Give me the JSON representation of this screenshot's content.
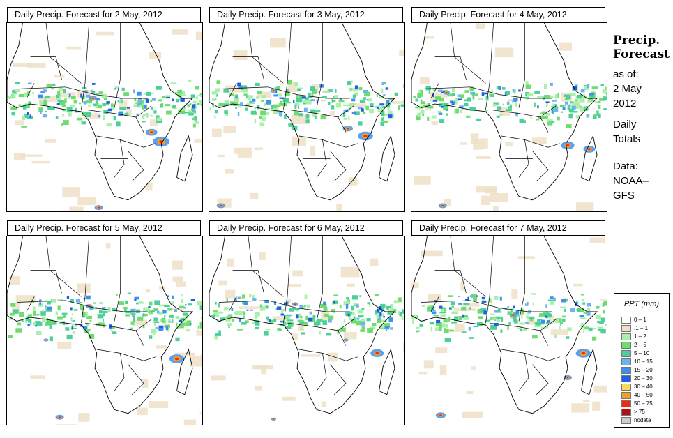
{
  "panels": [
    {
      "title": "Daily Precip. Forecast for  2 May, 2012",
      "seed": 11,
      "hot": [
        [
          0.79,
          0.63,
          1.0
        ],
        [
          0.74,
          0.58,
          0.7
        ],
        [
          0.44,
          0.4,
          0.5
        ],
        [
          0.47,
          0.98,
          0.5
        ]
      ]
    },
    {
      "title": "Daily Precip. Forecast for  3 May, 2012",
      "seed": 23,
      "hot": [
        [
          0.8,
          0.6,
          0.9
        ],
        [
          0.71,
          0.56,
          0.6
        ],
        [
          0.33,
          0.36,
          0.4
        ],
        [
          0.06,
          0.97,
          0.5
        ]
      ]
    },
    {
      "title": "Daily Precip. Forecast for  4 May, 2012",
      "seed": 37,
      "hot": [
        [
          0.8,
          0.65,
          0.8
        ],
        [
          0.91,
          0.67,
          0.7
        ],
        [
          0.18,
          0.37,
          0.4
        ],
        [
          0.16,
          0.97,
          0.5
        ]
      ]
    },
    {
      "title": "Daily Precip. Forecast for  5 May, 2012",
      "seed": 41,
      "hot": [
        [
          0.87,
          0.65,
          0.9
        ],
        [
          0.42,
          0.37,
          0.4
        ],
        [
          0.27,
          0.96,
          0.5
        ],
        [
          0.2,
          0.55,
          0.3
        ]
      ]
    },
    {
      "title": "Daily Precip. Forecast for  6 May, 2012",
      "seed": 53,
      "hot": [
        [
          0.86,
          0.62,
          0.8
        ],
        [
          0.44,
          0.36,
          0.4
        ],
        [
          0.33,
          0.97,
          0.3
        ],
        [
          0.7,
          0.55,
          0.3
        ]
      ]
    },
    {
      "title": "Daily Precip. Forecast for  7 May, 2012",
      "seed": 67,
      "hot": [
        [
          0.88,
          0.62,
          0.9
        ],
        [
          0.8,
          0.75,
          0.5
        ],
        [
          0.15,
          0.95,
          0.6
        ],
        [
          0.52,
          0.42,
          0.4
        ]
      ]
    }
  ],
  "sidebar": {
    "title_line1": "Precip.",
    "title_line2": "Forecast",
    "asof": "as of:",
    "date_line1": "2 May",
    "date_line2": "2012",
    "totals_line1": "Daily",
    "totals_line2": "Totals",
    "data_line1": "Data:",
    "data_line2": "NOAA–",
    "data_line3": "GFS"
  },
  "legend": {
    "title": "PPT (mm)",
    "items": [
      {
        "label": "0 – 1",
        "color": "#ffffff"
      },
      {
        "label": ".1 – 1",
        "color": "#efe0c8"
      },
      {
        "label": "1 – 2",
        "color": "#aaf0aa"
      },
      {
        "label": "2 – 5",
        "color": "#6fdc6f"
      },
      {
        "label": "5 – 10",
        "color": "#4dcf9a"
      },
      {
        "label": "10 – 15",
        "color": "#6cb4f0"
      },
      {
        "label": "15 – 20",
        "color": "#3d8ff0"
      },
      {
        "label": "20 – 30",
        "color": "#1f5fe6"
      },
      {
        "label": "30 – 40",
        "color": "#f5dc60"
      },
      {
        "label": "40 – 50",
        "color": "#f5a020"
      },
      {
        "label": "50 – 75",
        "color": "#ef2a10"
      },
      {
        "label": "> 75",
        "color": "#b01010"
      },
      {
        "label": "nodata",
        "color": "#cccccc"
      }
    ]
  }
}
